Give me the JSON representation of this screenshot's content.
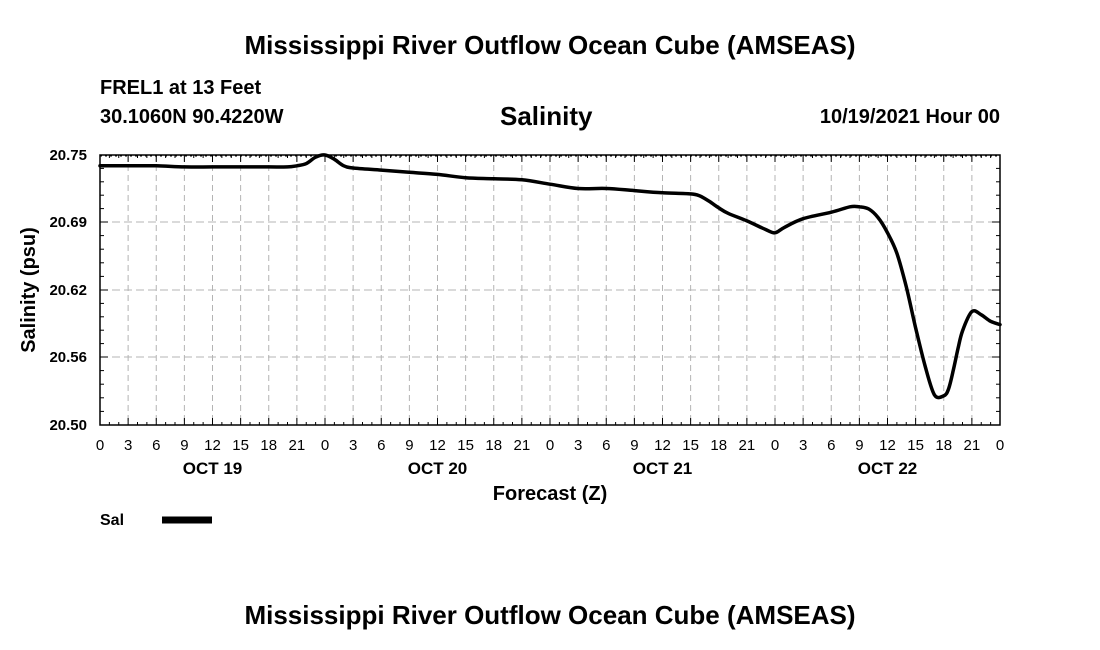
{
  "page": {
    "title": "Mississippi River Outflow Ocean Cube (AMSEAS)",
    "title_repeat": "Mississippi River Outflow Ocean Cube (AMSEAS)",
    "station": "FREL1 at 13 Feet",
    "coords": "30.1060N  90.4220W",
    "variable": "Salinity",
    "run": "10/19/2021 Hour 00"
  },
  "colors": {
    "line": "#000000",
    "grid": "#b4b4b4"
  },
  "chart_data": {
    "type": "line",
    "title": "Salinity",
    "xlabel": "Forecast (Z)",
    "ylabel": "Salinity (psu)",
    "xlim": [
      0,
      96
    ],
    "ylim": [
      20.5,
      20.75
    ],
    "yticks": [
      "20.75",
      "20.69",
      "20.62",
      "20.56",
      "20.50"
    ],
    "ytick_values": [
      20.75,
      20.69,
      20.62,
      20.56,
      20.5
    ],
    "xtick_labels": [
      "0",
      "3",
      "6",
      "9",
      "12",
      "15",
      "18",
      "21",
      "0",
      "3",
      "6",
      "9",
      "12",
      "15",
      "18",
      "21",
      "0",
      "3",
      "6",
      "9",
      "12",
      "15",
      "18",
      "21",
      "0",
      "3",
      "6",
      "9",
      "12",
      "15",
      "18",
      "21",
      "0"
    ],
    "day_labels": [
      {
        "label": "OCT 19",
        "hour": 12
      },
      {
        "label": "OCT 20",
        "hour": 36
      },
      {
        "label": "OCT 21",
        "hour": 60
      },
      {
        "label": "OCT 22",
        "hour": 84
      }
    ],
    "grid": true,
    "legend": "bottom-left",
    "series": [
      {
        "name": "Sal",
        "x": [
          0,
          3,
          6,
          9,
          12,
          15,
          18,
          20,
          21,
          22,
          23,
          24,
          25,
          26,
          27,
          30,
          33,
          36,
          39,
          42,
          45,
          48,
          51,
          54,
          57,
          60,
          63,
          64,
          65,
          66,
          67,
          69,
          71,
          72,
          73,
          75,
          78,
          80,
          81,
          82,
          83,
          84,
          85,
          86,
          87,
          88,
          89,
          90,
          90.5,
          91,
          91.5,
          92,
          93,
          94,
          95,
          96
        ],
        "values": [
          20.74,
          20.74,
          20.74,
          20.739,
          20.739,
          20.739,
          20.739,
          20.739,
          20.74,
          20.742,
          20.748,
          20.75,
          20.746,
          20.74,
          20.738,
          20.736,
          20.734,
          20.732,
          20.729,
          20.728,
          20.727,
          20.723,
          20.719,
          20.719,
          20.717,
          20.715,
          20.714,
          20.712,
          20.707,
          20.701,
          20.696,
          20.689,
          20.681,
          20.678,
          20.683,
          20.691,
          20.697,
          20.702,
          20.702,
          20.7,
          20.692,
          20.678,
          20.659,
          20.628,
          20.59,
          20.555,
          20.528,
          20.527,
          20.533,
          20.55,
          20.57,
          20.587,
          20.605,
          20.602,
          20.596,
          20.593
        ]
      }
    ]
  }
}
